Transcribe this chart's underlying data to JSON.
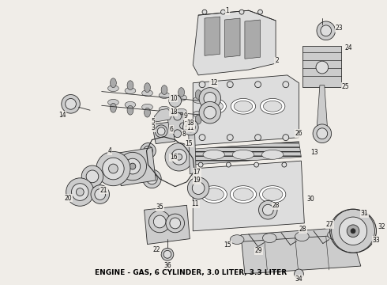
{
  "title": "ENGINE - GAS, 6 CYLINDER, 3.0 LITER, 3.3 LITER",
  "title_fontsize": 6.5,
  "title_fontweight": "bold",
  "bg_color": "#f0ede8",
  "fg_color": "#2a2a2a",
  "fig_width": 4.9,
  "fig_height": 3.6,
  "dpi": 100,
  "caption": "ENGINE - GAS, 6 CYLINDER, 3.0 LITER, 3.3 LITER"
}
